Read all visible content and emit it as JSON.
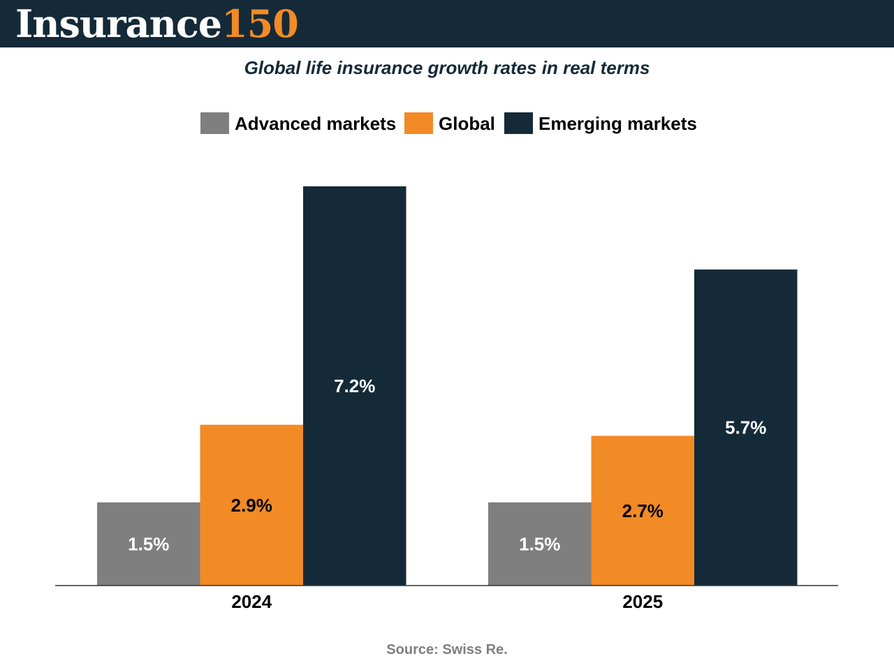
{
  "header": {
    "brand_word": "Insurance",
    "brand_number": "150"
  },
  "chart_data": {
    "type": "bar",
    "title": "Global life insurance growth rates in real terms",
    "categories": [
      "2024",
      "2025"
    ],
    "series": [
      {
        "name": "Advanced markets",
        "values": [
          1.5,
          1.5
        ],
        "labels": [
          "1.5%",
          "1.5%"
        ],
        "color": "#7f7f7f",
        "label_color": "#ffffff"
      },
      {
        "name": "Global",
        "values": [
          2.9,
          2.7
        ],
        "labels": [
          "2.9%",
          "2.7%"
        ],
        "color": "#f28a26",
        "label_color": "#000000"
      },
      {
        "name": "Emerging markets",
        "values": [
          7.2,
          5.7
        ],
        "labels": [
          "7.2%",
          "5.7%"
        ],
        "color": "#152a38",
        "label_color": "#ffffff"
      }
    ],
    "ylim": [
      0,
      7.2
    ],
    "grid": false,
    "legend": "top"
  },
  "footer": {
    "source": "Source: Swiss Re."
  }
}
